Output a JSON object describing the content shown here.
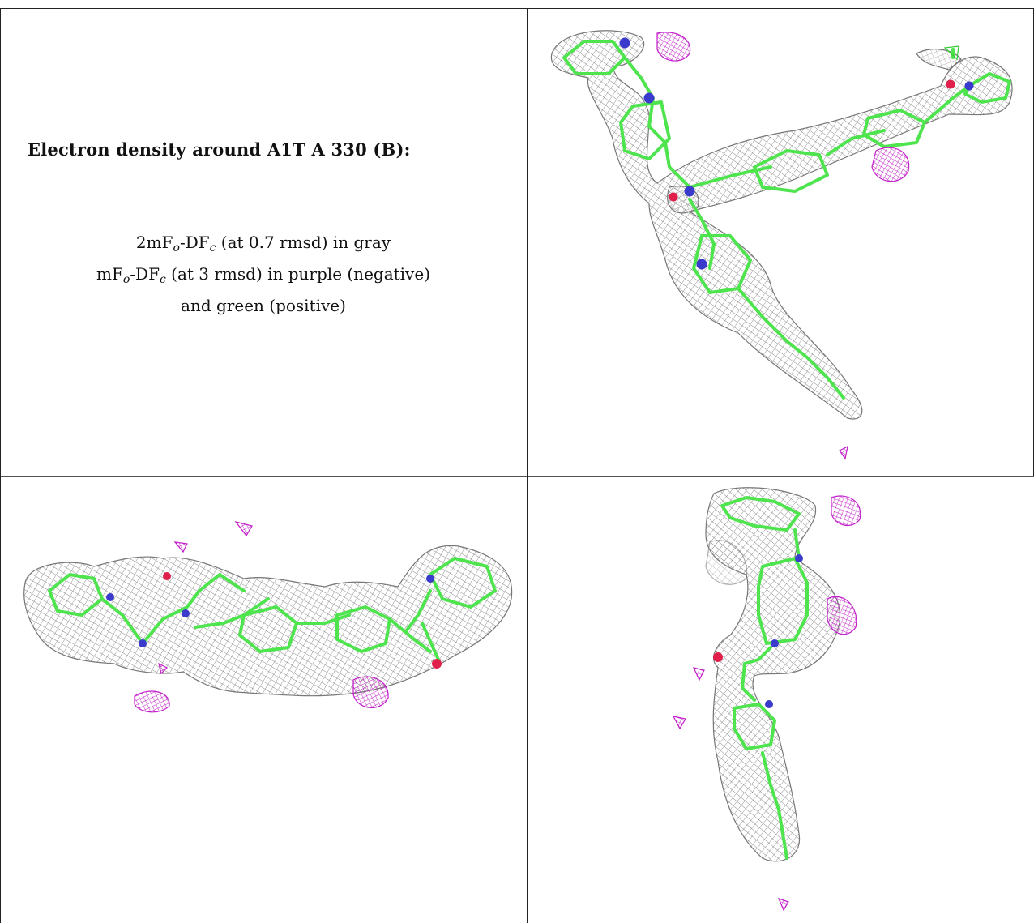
{
  "caption": {
    "title": "Electron density around A1T A 330 (B):",
    "line1": {
      "prefix": "2mF",
      "sub1": "o",
      "middle": "-DF",
      "sub2": "c",
      "suffix": " (at 0.7 rmsd) in gray"
    },
    "line2": {
      "prefix": "mF",
      "sub1": "o",
      "middle": "-DF",
      "sub2": "c",
      "suffix": " (at 3 rmsd) in purple (negative)"
    },
    "line3": "and green (positive)"
  },
  "colors": {
    "density_2fofc": "#8a8a8a",
    "density_negative": "#c21ec9",
    "density_positive": "#33cc33",
    "carbon": "#4ee44e",
    "nitrogen": "#3a3acc",
    "oxygen": "#e0204a",
    "border": "#222222"
  },
  "panels": [
    {
      "id": "view-1",
      "description_icon": "molecule-view-icon"
    },
    {
      "id": "view-2",
      "description_icon": "molecule-view-icon"
    },
    {
      "id": "view-3",
      "description_icon": "molecule-view-icon"
    }
  ]
}
